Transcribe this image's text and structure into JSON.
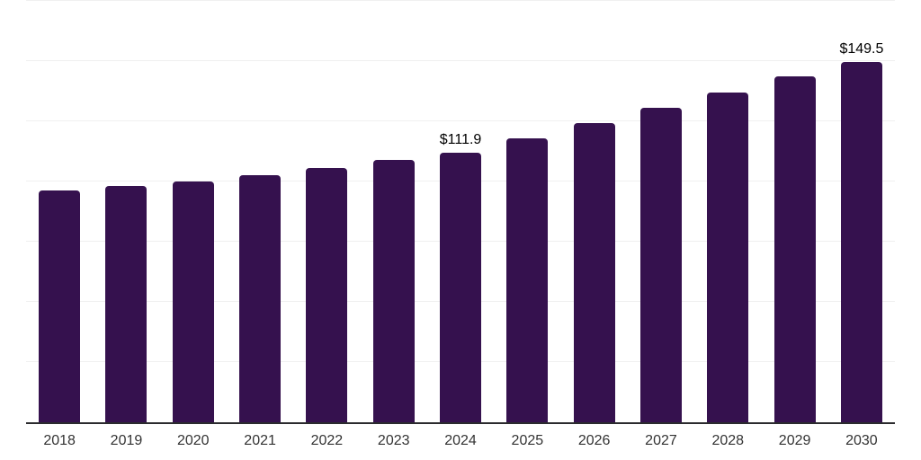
{
  "chart_data": {
    "type": "bar",
    "title": "",
    "xlabel": "",
    "ylabel": "",
    "categories": [
      "2018",
      "2019",
      "2020",
      "2021",
      "2022",
      "2023",
      "2024",
      "2025",
      "2026",
      "2027",
      "2028",
      "2029",
      "2030"
    ],
    "values": [
      96.2,
      98.1,
      100.0,
      102.8,
      105.5,
      108.9,
      111.9,
      117.9,
      124.4,
      130.6,
      137.1,
      143.6,
      149.5
    ],
    "data_labels": {
      "2024": "$111.9",
      "2030": "$149.5"
    },
    "ylim": [
      0,
      175
    ],
    "gridline_step": 25,
    "grid": true,
    "legend_position": "none",
    "colors": {
      "bar": "#35114E",
      "axis_line": "#2b2b2e",
      "gridline": "#f0f0f0",
      "tick_label": "#333333",
      "data_label": "#000000",
      "background": "#ffffff"
    }
  }
}
